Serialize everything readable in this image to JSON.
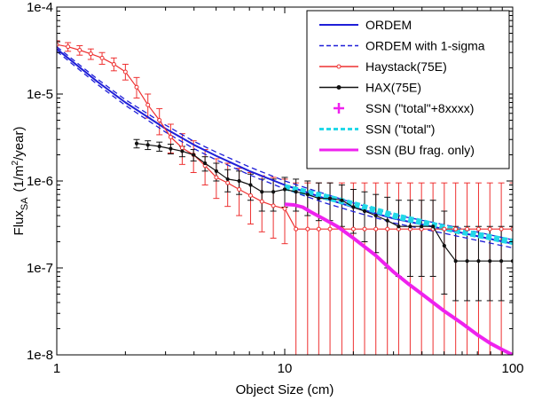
{
  "chart_data": {
    "type": "line",
    "title": "",
    "xlabel": "Object Size (cm)",
    "ylabel": {
      "base": "Flux",
      "subscript": "SA",
      "unit_open": "(1/m",
      "unit_sup": "2",
      "unit_close": "/year)"
    },
    "xscale": "log",
    "yscale": "log",
    "xlim": [
      1,
      100
    ],
    "ylim": [
      1e-08,
      0.0001
    ],
    "x_ticks": [
      {
        "value": 1,
        "label": "1"
      },
      {
        "value": 10,
        "label": "10"
      },
      {
        "value": 100,
        "label": "100"
      }
    ],
    "y_ticks": [
      {
        "value": 1e-08,
        "label": "1e-8"
      },
      {
        "value": 1e-07,
        "label": "1e-7"
      },
      {
        "value": 1e-06,
        "label": "1e-6"
      },
      {
        "value": 1e-05,
        "label": "1e-5"
      },
      {
        "value": 0.0001,
        "label": "1e-4"
      }
    ],
    "grid": false,
    "legend_position": "top-right",
    "series": [
      {
        "name": "ORDEM",
        "color": "#1f1fd8",
        "style": "solid",
        "marker": "none",
        "x": [
          1,
          1.5,
          2,
          3,
          4,
          5,
          7,
          10,
          15,
          20,
          30,
          50,
          100
        ],
        "y": [
          3.3e-05,
          1.4e-05,
          8e-06,
          4e-06,
          2.6e-06,
          1.95e-06,
          1.3e-06,
          9e-07,
          6.3e-07,
          5e-07,
          3.7e-07,
          2.8e-07,
          1.9e-07
        ]
      },
      {
        "name": "ORDEM with 1-sigma",
        "color": "#1f1fd8",
        "style": "dashed",
        "marker": "none",
        "x": [
          1,
          1.5,
          2,
          3,
          4,
          5,
          7,
          10,
          15,
          20,
          30,
          50,
          100
        ],
        "y": [
          3.5e-05,
          1.5e-05,
          8.6e-06,
          4.4e-06,
          2.85e-06,
          2.15e-06,
          1.45e-06,
          1e-06,
          7.1e-07,
          5.6e-07,
          4.1e-07,
          3.15e-07,
          2.1e-07
        ],
        "y_lower": [
          3.1e-05,
          1.3e-05,
          7.4e-06,
          3.65e-06,
          2.35e-06,
          1.75e-06,
          1.18e-06,
          8.1e-07,
          5.6e-07,
          4.45e-07,
          3.3e-07,
          2.5e-07,
          1.7e-07
        ]
      },
      {
        "name": "Haystack(75E)",
        "color": "#ee3030",
        "style": "solid",
        "marker": "circle",
        "x": [
          1,
          1.12,
          1.26,
          1.41,
          1.58,
          1.78,
          2,
          2.24,
          2.51,
          2.82,
          3.16,
          3.55,
          3.98,
          4.47,
          5.01,
          5.62,
          6.31,
          7.08,
          7.94,
          8.91,
          10,
          11.2,
          12.6,
          14.1,
          15.8,
          17.8,
          20,
          22.4,
          25.1,
          28.2,
          31.6,
          35.5,
          39.8,
          44.7,
          50.1,
          56.2,
          63.1,
          70.8,
          79.4,
          89.1,
          100
        ],
        "y": [
          3.7e-05,
          3.5e-05,
          3.2e-05,
          2.9e-05,
          2.6e-05,
          2.2e-05,
          1.8e-05,
          1.2e-05,
          7.5e-06,
          5e-06,
          3.2e-06,
          2.4e-06,
          2e-06,
          1.5e-06,
          1.1e-06,
          9.5e-07,
          8e-07,
          6.8e-07,
          5.8e-07,
          5.2e-07,
          4.8e-07,
          2.8e-07,
          2.8e-07,
          2.8e-07,
          2.8e-07,
          2.8e-07,
          2.8e-07,
          2.8e-07,
          2.8e-07,
          2.8e-07,
          2.8e-07,
          2.8e-07,
          2.8e-07,
          2.8e-07,
          2.8e-07,
          2.8e-07,
          2.8e-07,
          2.8e-07,
          2.8e-07,
          2.8e-07,
          2.8e-07
        ],
        "y_upper": [
          4.1e-05,
          3.9e-05,
          3.6e-05,
          3.3e-05,
          3e-05,
          2.6e-05,
          2.2e-05,
          1.55e-05,
          1e-05,
          6.8e-06,
          4.5e-06,
          3.5e-06,
          2.9e-06,
          2.3e-06,
          1.8e-06,
          1.6e-06,
          1.4e-06,
          1.25e-06,
          1.15e-06,
          1.1e-06,
          1.05e-06,
          9.5e-07,
          9.5e-07,
          9.5e-07,
          9.5e-07,
          9.5e-07,
          9.5e-07,
          9.5e-07,
          9.5e-07,
          9.5e-07,
          9.5e-07,
          9.5e-07,
          9.5e-07,
          9.5e-07,
          9.5e-07,
          9.5e-07,
          9.5e-07,
          9.5e-07,
          9.5e-07,
          9.5e-07,
          9.5e-07
        ],
        "y_lower": [
          3.3e-05,
          3.1e-05,
          2.8e-05,
          2.5e-05,
          2.2e-05,
          1.85e-05,
          1.45e-05,
          9e-06,
          5.3e-06,
          3.4e-06,
          2.1e-06,
          1.55e-06,
          1.25e-06,
          9e-07,
          6.3e-07,
          5.1e-07,
          4e-07,
          3.2e-07,
          2.6e-07,
          2.2e-07,
          1.9e-07,
          1e-08,
          1e-08,
          1e-08,
          1e-08,
          1e-08,
          1e-08,
          1e-08,
          1e-08,
          1e-08,
          1e-08,
          1e-08,
          1e-08,
          1e-08,
          1e-08,
          1e-08,
          1e-08,
          1e-08,
          1e-08,
          1e-08,
          1e-08
        ]
      },
      {
        "name": "HAX(75E)",
        "color": "#111111",
        "style": "solid",
        "marker": "dot",
        "x": [
          2.24,
          2.51,
          2.82,
          3.16,
          3.55,
          3.98,
          4.47,
          5.01,
          5.62,
          6.31,
          7.08,
          7.94,
          8.91,
          10,
          11.2,
          12.6,
          14.1,
          15.8,
          17.8,
          20,
          22.4,
          25.1,
          28.2,
          31.6,
          35.5,
          39.8,
          44.7,
          50.1,
          56.2,
          63.1,
          70.8,
          79.4,
          89.1,
          100
        ],
        "y": [
          2.7e-06,
          2.6e-06,
          2.5e-06,
          2.35e-06,
          2.2e-06,
          2e-06,
          1.6e-06,
          1.3e-06,
          1.05e-06,
          1e-06,
          9e-07,
          7.5e-07,
          7.5e-07,
          8e-07,
          7.5e-07,
          7e-07,
          6.3e-07,
          6.3e-07,
          6e-07,
          5e-07,
          4.5e-07,
          4e-07,
          3.5e-07,
          3e-07,
          3e-07,
          3e-07,
          3e-07,
          1.8e-07,
          1.2e-07,
          1.2e-07,
          1.2e-07,
          1.2e-07,
          1.2e-07,
          1.2e-07
        ],
        "y_upper": [
          3e-06,
          2.9e-06,
          2.8e-06,
          2.65e-06,
          2.5e-06,
          2.3e-06,
          1.9e-06,
          1.6e-06,
          1.35e-06,
          1.3e-06,
          1.2e-06,
          1.05e-06,
          1.05e-06,
          1.1e-06,
          1.05e-06,
          1e-06,
          9.5e-07,
          9.5e-07,
          9e-07,
          8e-07,
          7.5e-07,
          7e-07,
          6.5e-07,
          6e-07,
          6e-07,
          6e-07,
          6e-07,
          4.5e-07,
          3e-07,
          3e-07,
          3e-07,
          3e-07,
          3e-07,
          3e-07
        ],
        "y_lower": [
          2.4e-06,
          2.3e-06,
          2.2e-06,
          2.05e-06,
          1.9e-06,
          1.7e-06,
          1.3e-06,
          1e-06,
          7.5e-07,
          7e-07,
          6e-07,
          4.5e-07,
          4.5e-07,
          5e-07,
          4.5e-07,
          4e-07,
          3.5e-07,
          3.5e-07,
          3e-07,
          2.5e-07,
          2e-07,
          1.5e-07,
          1e-07,
          8e-08,
          8e-08,
          8e-08,
          8e-08,
          5e-08,
          4.2e-08,
          4.2e-08,
          4.2e-08,
          4.2e-08,
          4.2e-08,
          4.2e-08
        ]
      },
      {
        "name": "SSN (\"total\"+8xxxx)",
        "color": "#ee22ee",
        "style": "none",
        "marker": "plus",
        "x": [],
        "y": []
      },
      {
        "name": "SSN (\"total\")",
        "color": "#22d8e8",
        "style": "dashed",
        "marker": "none",
        "x": [
          10,
          12,
          15,
          20,
          25,
          30,
          40,
          50,
          60,
          70,
          80,
          90,
          100
        ],
        "y": [
          8.5e-07,
          7.6e-07,
          6.6e-07,
          5.4e-07,
          4.6e-07,
          4e-07,
          3.35e-07,
          2.9e-07,
          2.6e-07,
          2.4e-07,
          2.25e-07,
          2.1e-07,
          2e-07
        ]
      },
      {
        "name": "SSN (BU frag. only)",
        "color": "#ee22ee",
        "style": "solid",
        "marker": "none",
        "x": [
          10,
          11,
          12,
          13,
          15,
          17,
          20,
          25,
          30,
          35,
          40,
          50,
          60,
          70,
          80,
          90,
          100
        ],
        "y": [
          5.4e-07,
          5.3e-07,
          5e-07,
          4.4e-07,
          3.6e-07,
          3e-07,
          2.2e-07,
          1.4e-07,
          9e-08,
          6.5e-08,
          5e-08,
          3.2e-08,
          2.3e-08,
          1.7e-08,
          1.35e-08,
          1.15e-08,
          1e-08
        ]
      }
    ]
  }
}
